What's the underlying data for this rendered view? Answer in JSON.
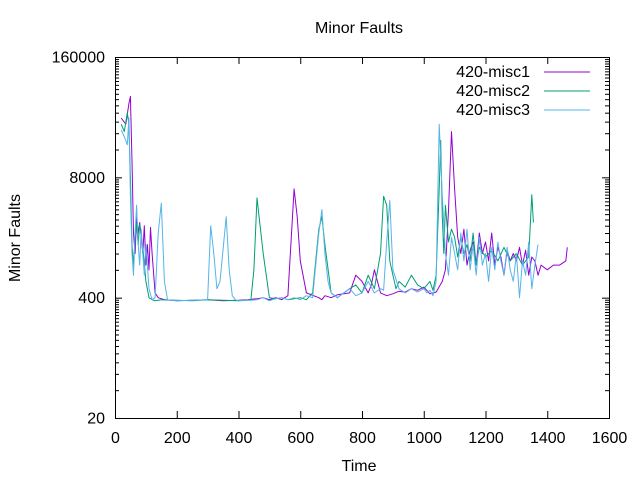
{
  "chart_data": {
    "type": "line",
    "title": "Minor Faults",
    "xlabel": "Time",
    "ylabel": "Minor Faults",
    "xlim": [
      0,
      1600
    ],
    "ylim": [
      20,
      160000
    ],
    "yscale": "log",
    "xticks": [
      "0",
      "200",
      "400",
      "600",
      "800",
      "1000",
      "1200",
      "1400",
      "1600"
    ],
    "yticks": [
      {
        "label": "20",
        "value": 20
      },
      {
        "label": "400",
        "value": 400
      },
      {
        "label": "8000",
        "value": 8000
      },
      {
        "label": "160000",
        "value": 160000
      }
    ],
    "grid": false,
    "legend_position": "top-right",
    "series": [
      {
        "name": "420-misc1",
        "color": "#9400d3",
        "x": [
          20,
          35,
          45,
          50,
          55,
          60,
          65,
          70,
          75,
          80,
          85,
          90,
          95,
          100,
          105,
          110,
          115,
          120,
          130,
          140,
          160,
          200,
          250,
          300,
          350,
          400,
          430,
          460,
          480,
          500,
          520,
          540,
          560,
          580,
          590,
          600,
          620,
          660,
          670,
          680,
          700,
          720,
          760,
          780,
          800,
          820,
          830,
          840,
          860,
          880,
          900,
          920,
          940,
          960,
          980,
          1000,
          1020,
          1040,
          1060,
          1070,
          1080,
          1090,
          1100,
          1110,
          1120,
          1130,
          1140,
          1150,
          1160,
          1170,
          1180,
          1190,
          1200,
          1210,
          1220,
          1230,
          1240,
          1250,
          1260,
          1270,
          1280,
          1290,
          1300,
          1310,
          1320,
          1330,
          1340,
          1350,
          1360,
          1370,
          1380,
          1400,
          1420,
          1440,
          1460,
          1465
        ],
        "y": [
          35000,
          30000,
          50000,
          60000,
          12000,
          2000,
          1200,
          3000,
          2000,
          2600,
          1800,
          1200,
          2400,
          900,
          1500,
          800,
          2300,
          1200,
          450,
          400,
          380,
          370,
          375,
          380,
          370,
          375,
          380,
          390,
          400,
          380,
          400,
          380,
          420,
          6000,
          3000,
          1000,
          450,
          400,
          380,
          420,
          400,
          430,
          450,
          700,
          600,
          450,
          550,
          800,
          450,
          420,
          440,
          470,
          460,
          500,
          480,
          520,
          440,
          460,
          600,
          800,
          3500,
          25000,
          6000,
          1800,
          1200,
          2200,
          900,
          1300,
          1600,
          900,
          2000,
          1200,
          1600,
          1000,
          2000,
          900,
          1400,
          1100,
          700,
          1300,
          1000,
          1200,
          1000,
          1400,
          900,
          1300,
          700,
          1100,
          1000,
          700,
          900,
          800,
          900,
          900,
          1000,
          1400
        ]
      },
      {
        "name": "420-misc2",
        "color": "#009e73",
        "x": [
          20,
          30,
          40,
          45,
          50,
          55,
          60,
          65,
          70,
          75,
          80,
          90,
          100,
          110,
          120,
          130,
          150,
          200,
          250,
          300,
          350,
          400,
          440,
          450,
          460,
          470,
          480,
          500,
          520,
          540,
          560,
          600,
          620,
          640,
          660,
          670,
          680,
          700,
          720,
          760,
          780,
          800,
          820,
          840,
          860,
          870,
          880,
          890,
          900,
          910,
          920,
          940,
          960,
          980,
          1000,
          1020,
          1030,
          1040,
          1050,
          1055,
          1060,
          1065,
          1070,
          1080,
          1090,
          1100,
          1110,
          1120,
          1130,
          1140,
          1150,
          1160,
          1170,
          1180,
          1200,
          1220,
          1240,
          1260,
          1280,
          1300,
          1320,
          1340,
          1350,
          1355
        ],
        "y": [
          30000,
          25000,
          40000,
          30000,
          8000,
          1500,
          900,
          1800,
          2500,
          1500,
          2500,
          1400,
          600,
          400,
          380,
          370,
          380,
          375,
          370,
          380,
          375,
          370,
          380,
          800,
          4800,
          2400,
          1200,
          400,
          390,
          400,
          380,
          400,
          380,
          450,
          2200,
          3000,
          1500,
          450,
          400,
          500,
          550,
          450,
          700,
          500,
          1200,
          5000,
          4000,
          1000,
          700,
          500,
          600,
          520,
          700,
          550,
          500,
          600,
          480,
          700,
          6000,
          20000,
          3000,
          1200,
          4000,
          1600,
          2200,
          1800,
          1100,
          1800,
          1200,
          1500,
          1000,
          2000,
          900,
          1400,
          1100,
          1300,
          1000,
          1400,
          1000,
          1200,
          900,
          1100,
          5200,
          2600
        ]
      },
      {
        "name": "420-misc3",
        "color": "#56b4e9",
        "x": [
          20,
          30,
          40,
          45,
          50,
          55,
          60,
          65,
          70,
          75,
          80,
          85,
          90,
          95,
          100,
          110,
          120,
          130,
          140,
          150,
          160,
          170,
          200,
          250,
          300,
          310,
          320,
          330,
          340,
          360,
          370,
          380,
          390,
          400,
          440,
          460,
          480,
          500,
          520,
          540,
          560,
          580,
          600,
          620,
          640,
          660,
          670,
          680,
          690,
          700,
          720,
          760,
          780,
          800,
          820,
          840,
          860,
          870,
          880,
          890,
          900,
          920,
          940,
          960,
          980,
          1000,
          1010,
          1020,
          1030,
          1040,
          1050,
          1060,
          1070,
          1080,
          1090,
          1100,
          1110,
          1120,
          1130,
          1140,
          1150,
          1160,
          1170,
          1180,
          1190,
          1200,
          1210,
          1220,
          1230,
          1240,
          1250,
          1260,
          1270,
          1280,
          1290,
          1300,
          1310,
          1320,
          1330,
          1340,
          1350,
          1360,
          1370
        ],
        "y": [
          26000,
          22000,
          18000,
          35000,
          5000,
          1200,
          700,
          2000,
          4000,
          1500,
          900,
          2200,
          1200,
          700,
          1500,
          500,
          380,
          400,
          2000,
          4200,
          600,
          380,
          370,
          375,
          380,
          2400,
          1200,
          500,
          600,
          3000,
          800,
          420,
          380,
          370,
          375,
          380,
          400,
          370,
          390,
          400,
          380,
          400,
          380,
          420,
          400,
          2000,
          3600,
          1200,
          600,
          450,
          400,
          500,
          420,
          450,
          600,
          450,
          500,
          480,
          1600,
          4500,
          800,
          500,
          450,
          500,
          460,
          500,
          450,
          480,
          420,
          600,
          30000,
          5000,
          1200,
          700,
          1800,
          1200,
          800,
          2000,
          1000,
          2200,
          800,
          1500,
          700,
          1800,
          900,
          1200,
          600,
          1400,
          800,
          1600,
          1000,
          700,
          1400,
          800,
          600,
          1200,
          400,
          1000,
          700,
          1600,
          500,
          900,
          1500
        ]
      }
    ]
  }
}
